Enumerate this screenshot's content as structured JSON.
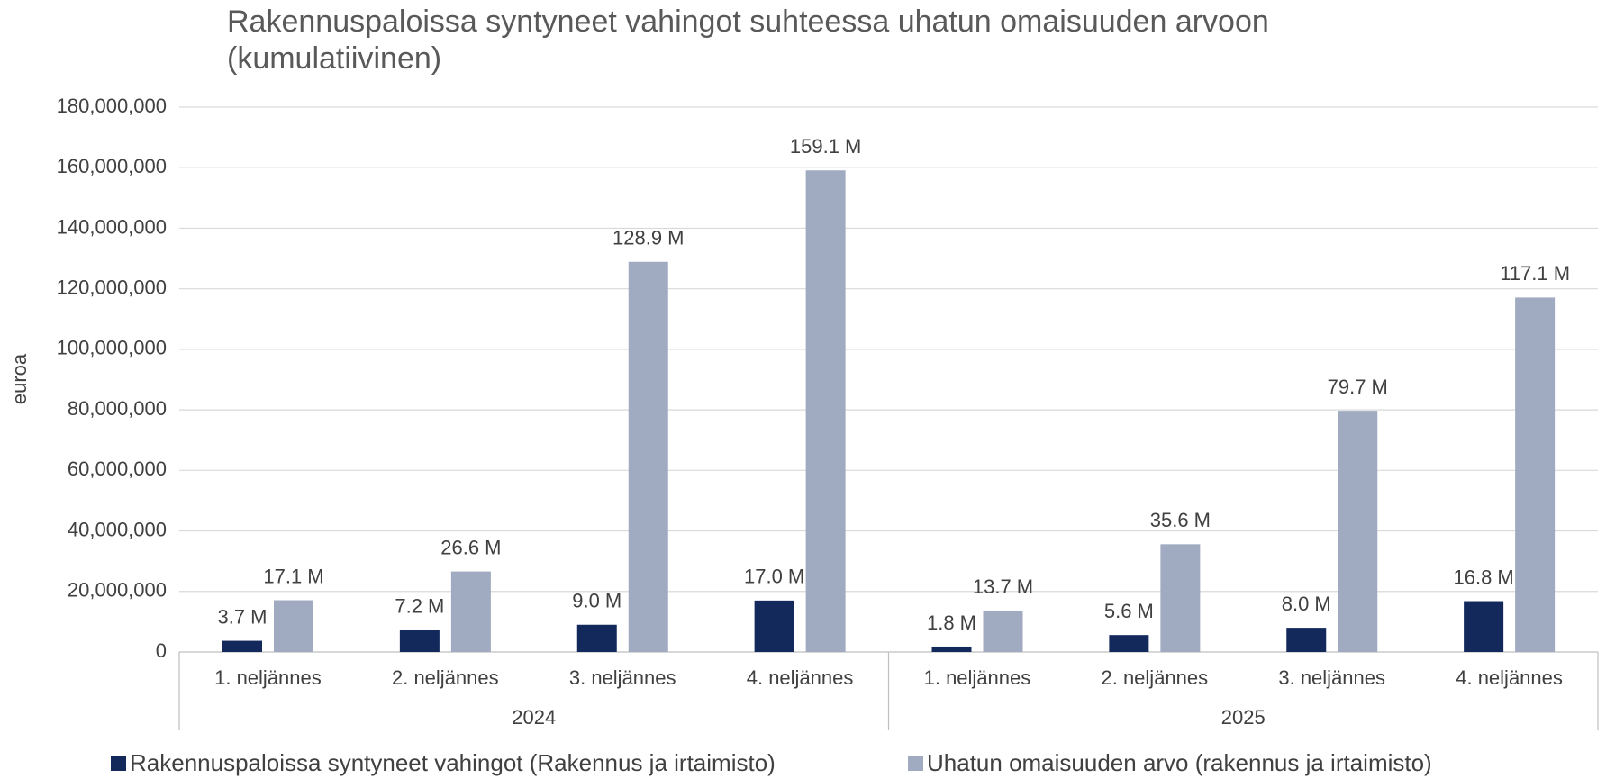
{
  "chart_data": {
    "type": "bar",
    "title": "Rakennuspaloissa syntyneet vahingot suhteessa uhatun omaisuuden arvoon (kumulatiivinen)",
    "ylabel": "euroa",
    "categories": [
      "1. neljännes",
      "2. neljännes",
      "3. neljännes",
      "4. neljännes",
      "1. neljännes",
      "2. neljännes",
      "3. neljännes",
      "4. neljännes"
    ],
    "groups": [
      "2024",
      "2025"
    ],
    "series": [
      {
        "name": "Rakennuspaloissa syntyneet vahingot (Rakennus ja irtaimisto)",
        "color": "#13285b",
        "values": [
          3700000,
          7200000,
          9000000,
          17000000,
          1800000,
          5600000,
          8000000,
          16800000
        ],
        "value_labels": [
          "3.7 M",
          "7.2 M",
          "9.0 M",
          "17.0 M",
          "1.8 M",
          "5.6 M",
          "8.0 M",
          "16.8 M"
        ]
      },
      {
        "name": "Uhatun omaisuuden arvo (rakennus ja irtaimisto)",
        "color": "#a0aac0",
        "values": [
          17100000,
          26600000,
          128900000,
          159100000,
          13700000,
          35600000,
          79700000,
          117100000
        ],
        "value_labels": [
          "17.1 M",
          "26.6 M",
          "128.9 M",
          "159.1 M",
          "13.7 M",
          "35.6 M",
          "79.7 M",
          "117.1 M"
        ]
      }
    ],
    "ylim": [
      0,
      180000000
    ],
    "yticks": [
      0,
      {
        "value": 20000000,
        "label": "20,000,000"
      },
      {
        "value": 40000000,
        "label": "40,000,000"
      },
      {
        "value": 60000000,
        "label": "60,000,000"
      },
      {
        "value": 80000000,
        "label": "80,000,000"
      },
      {
        "value": 100000000,
        "label": "100,000,000"
      },
      {
        "value": 120000000,
        "label": "120,000,000"
      },
      {
        "value": 140000000,
        "label": "140,000,000"
      },
      {
        "value": 160000000,
        "label": "160,000,000"
      },
      {
        "value": 180000000,
        "label": "180,000,000"
      }
    ],
    "grid": true,
    "legend": "bottom"
  }
}
